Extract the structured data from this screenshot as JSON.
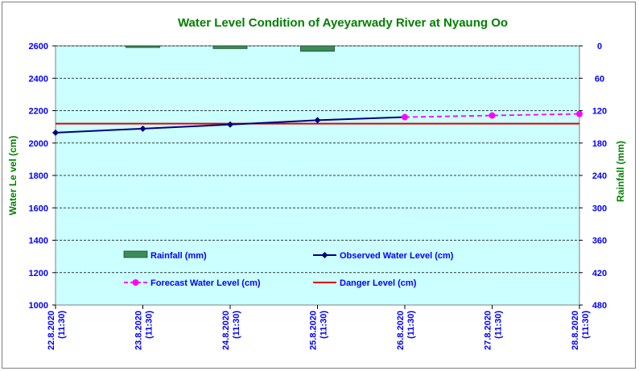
{
  "colors": {
    "title": "#008000",
    "axis_text": "#0000ff",
    "plot_bg": "#ccffff",
    "rainfall": "#3c8c5a",
    "observed": "#000080",
    "forecast": "#ff00ff",
    "danger": "#e00000"
  },
  "chart_data": {
    "type": "line",
    "title": "Water Level Condition  of Ayeyarwady  River at Nyaung Oo",
    "ylabel": "Water Le vel (cm)",
    "y2label": "Rainfall (mm)",
    "ylim": [
      1000,
      2600
    ],
    "y_ticks": [
      1000,
      1200,
      1400,
      1600,
      1800,
      2000,
      2200,
      2400,
      2600
    ],
    "y2lim": [
      0,
      480
    ],
    "y2_reversed": true,
    "y2_ticks": [
      0,
      60,
      120,
      180,
      240,
      300,
      360,
      420,
      480
    ],
    "x_categories": [
      [
        "22.8.2020",
        "(11:30)"
      ],
      [
        "23.8.2020",
        "(11:30)"
      ],
      [
        "24.8.2020",
        "(11:30)"
      ],
      [
        "25.8.2020",
        "(11:30)"
      ],
      [
        "26.8.2020",
        "(11:30)"
      ],
      [
        "27.8.2020",
        "(11:30)"
      ],
      [
        "28.8.2020",
        "(11:30)"
      ]
    ],
    "grid": "horizontal dashed",
    "legend_position": "lower-center inside plot",
    "series": [
      {
        "name": "Rainfall (mm)",
        "type": "bar",
        "axis": "right",
        "values": [
          null,
          3,
          5,
          10,
          null,
          null,
          null
        ]
      },
      {
        "name": "Observed Water Level (cm)",
        "type": "line",
        "marker": "diamond",
        "values": [
          2064,
          2089,
          2114,
          2141,
          2160,
          null,
          null
        ]
      },
      {
        "name": "Forecast Water Level (cm)",
        "type": "line",
        "dashed": true,
        "marker": "circle",
        "values": [
          null,
          null,
          null,
          null,
          2160,
          2170,
          2180
        ]
      },
      {
        "name": "Danger Level (cm)",
        "type": "line",
        "values": [
          2120,
          2120,
          2120,
          2120,
          2120,
          2120,
          2120
        ]
      }
    ]
  }
}
